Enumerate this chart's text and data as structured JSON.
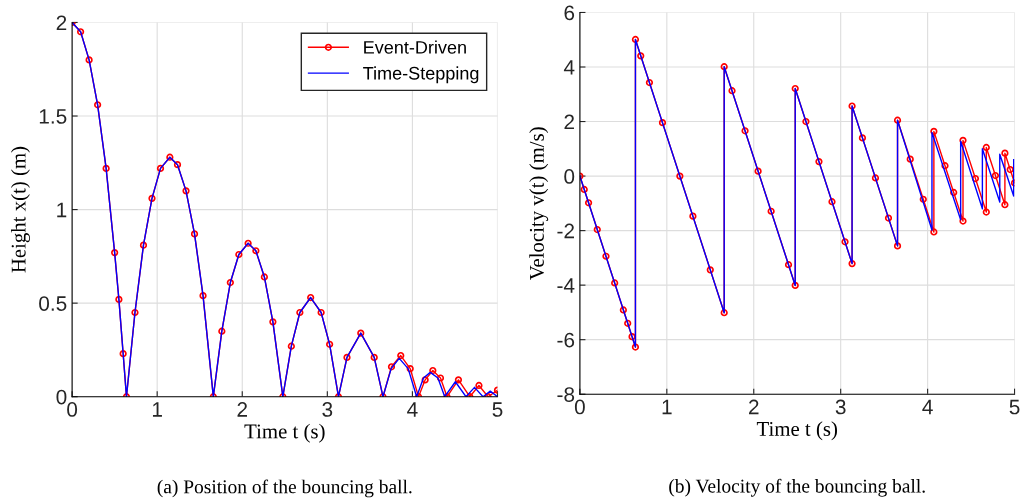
{
  "chart_data": [
    {
      "type": "line",
      "xlabel": "Time t (s)",
      "ylabel": "Height x(t) (m)",
      "xlim": [
        0,
        5
      ],
      "ylim": [
        0,
        2
      ],
      "xticks": [
        0,
        1,
        2,
        3,
        4,
        5
      ],
      "yticks": [
        0,
        0.5,
        1,
        1.5,
        2
      ],
      "grid": true,
      "legend": "top right",
      "annotations": [
        "(a) Position of the bouncing ball."
      ],
      "series": [
        {
          "name": "Event-Driven",
          "color": "#ff0000",
          "marker": "circle",
          "x": [
            0,
            0.1,
            0.2,
            0.3,
            0.4,
            0.5,
            0.55,
            0.6,
            0.639,
            0.739,
            0.839,
            0.939,
            1.039,
            1.149,
            1.239,
            1.339,
            1.439,
            1.539,
            1.66,
            1.76,
            1.86,
            1.96,
            2.069,
            2.16,
            2.26,
            2.36,
            2.477,
            2.577,
            2.677,
            2.804,
            2.927,
            3.027,
            3.131,
            3.231,
            3.393,
            3.551,
            3.654,
            3.754,
            3.863,
            3.974,
            4.072,
            4.15,
            4.24,
            4.33,
            4.407,
            4.541,
            4.675,
            4.782,
            4.889,
            5.0
          ],
          "values": [
            2,
            1.95,
            1.8,
            1.56,
            1.22,
            0.77,
            0.52,
            0.23,
            0,
            0.45,
            0.81,
            1.06,
            1.22,
            1.28,
            1.24,
            1.1,
            0.87,
            0.54,
            0,
            0.35,
            0.61,
            0.76,
            0.82,
            0.78,
            0.64,
            0.4,
            0,
            0.27,
            0.45,
            0.53,
            0.45,
            0.28,
            0,
            0.21,
            0.34,
            0.21,
            0,
            0.16,
            0.22,
            0.15,
            0,
            0.09,
            0.14,
            0.1,
            0,
            0.09,
            0,
            0.06,
            0,
            0.035
          ]
        },
        {
          "name": "Time-Stepping",
          "color": "#0000ff",
          "marker": "none",
          "x": [
            0,
            0.1,
            0.2,
            0.3,
            0.4,
            0.5,
            0.55,
            0.6,
            0.639,
            0.739,
            0.839,
            0.939,
            1.039,
            1.149,
            1.239,
            1.339,
            1.439,
            1.539,
            1.66,
            1.76,
            1.86,
            1.96,
            2.069,
            2.16,
            2.26,
            2.36,
            2.477,
            2.577,
            2.677,
            2.804,
            2.927,
            3.027,
            3.131,
            3.231,
            3.393,
            3.551,
            3.654,
            3.75,
            3.845,
            3.95,
            4.05,
            4.13,
            4.21,
            4.3,
            4.38,
            4.505,
            4.63,
            4.73,
            4.83,
            4.915,
            5.0
          ],
          "values": [
            2,
            1.95,
            1.8,
            1.56,
            1.22,
            0.77,
            0.52,
            0.23,
            0,
            0.45,
            0.81,
            1.06,
            1.22,
            1.28,
            1.24,
            1.1,
            0.87,
            0.54,
            0,
            0.35,
            0.61,
            0.76,
            0.82,
            0.78,
            0.64,
            0.4,
            0,
            0.27,
            0.45,
            0.53,
            0.45,
            0.28,
            0,
            0.21,
            0.34,
            0.21,
            0,
            0.15,
            0.205,
            0.15,
            0,
            0.1,
            0.13,
            0.1,
            0,
            0.08,
            0,
            0.05,
            0,
            0.03,
            0
          ]
        }
      ]
    },
    {
      "type": "line",
      "xlabel": "Time t (s)",
      "ylabel": "Velocity v(t) (m/s)",
      "xlim": [
        0,
        5
      ],
      "ylim": [
        -8,
        6
      ],
      "xticks": [
        0,
        1,
        2,
        3,
        4,
        5
      ],
      "yticks": [
        -8,
        -6,
        -4,
        -2,
        0,
        2,
        4,
        6
      ],
      "grid": true,
      "annotations": [
        "(b) Velocity of the bouncing ball."
      ],
      "series": [
        {
          "color": "#ff0000",
          "marker": "circle",
          "x": [
            0,
            0.05,
            0.1,
            0.2,
            0.3,
            0.4,
            0.5,
            0.55,
            0.6,
            0.639,
            0.639,
            0.7,
            0.8,
            0.95,
            1.15,
            1.3,
            1.5,
            1.66,
            1.66,
            1.75,
            1.9,
            2.05,
            2.2,
            2.4,
            2.477,
            2.477,
            2.6,
            2.75,
            2.9,
            3.05,
            3.131,
            3.131,
            3.25,
            3.4,
            3.55,
            3.654,
            3.654,
            3.8,
            3.95,
            4.072,
            4.072,
            4.2,
            4.3,
            4.407,
            4.407,
            4.55,
            4.675,
            4.675,
            4.78,
            4.889,
            4.889,
            4.95,
            5.0
          ],
          "values": [
            0,
            -0.49,
            -0.98,
            -1.96,
            -2.94,
            -3.92,
            -4.91,
            -5.4,
            -5.89,
            -6.27,
            5.01,
            4.41,
            3.43,
            1.96,
            0,
            -1.47,
            -3.44,
            -5.01,
            4.01,
            3.13,
            1.66,
            0.18,
            -1.29,
            -3.25,
            -4.01,
            3.21,
            2.0,
            0.53,
            -0.94,
            -2.41,
            -3.21,
            2.57,
            1.4,
            -0.07,
            -1.54,
            -2.56,
            2.05,
            0.62,
            -0.85,
            -2.05,
            1.64,
            0.38,
            -0.6,
            -1.65,
            1.31,
            -0.09,
            -1.32,
            1.05,
            0.02,
            -1.05,
            0.84,
            0.24,
            -0.25
          ]
        },
        {
          "color": "#0000ff",
          "marker": "none",
          "x": [
            0,
            0.639,
            0.639,
            1.66,
            1.66,
            2.477,
            2.477,
            3.131,
            3.131,
            3.654,
            3.654,
            4.05,
            4.05,
            4.38,
            4.38,
            4.63,
            4.63,
            4.83,
            4.83,
            4.99,
            4.99
          ],
          "values": [
            0,
            -6.27,
            5.01,
            -5.01,
            4.01,
            -4.01,
            3.21,
            -3.21,
            2.57,
            -2.56,
            2.05,
            -1.98,
            1.6,
            -1.6,
            1.28,
            -1.2,
            1.0,
            -0.95,
            0.8,
            -0.73,
            0.6
          ]
        }
      ]
    }
  ]
}
